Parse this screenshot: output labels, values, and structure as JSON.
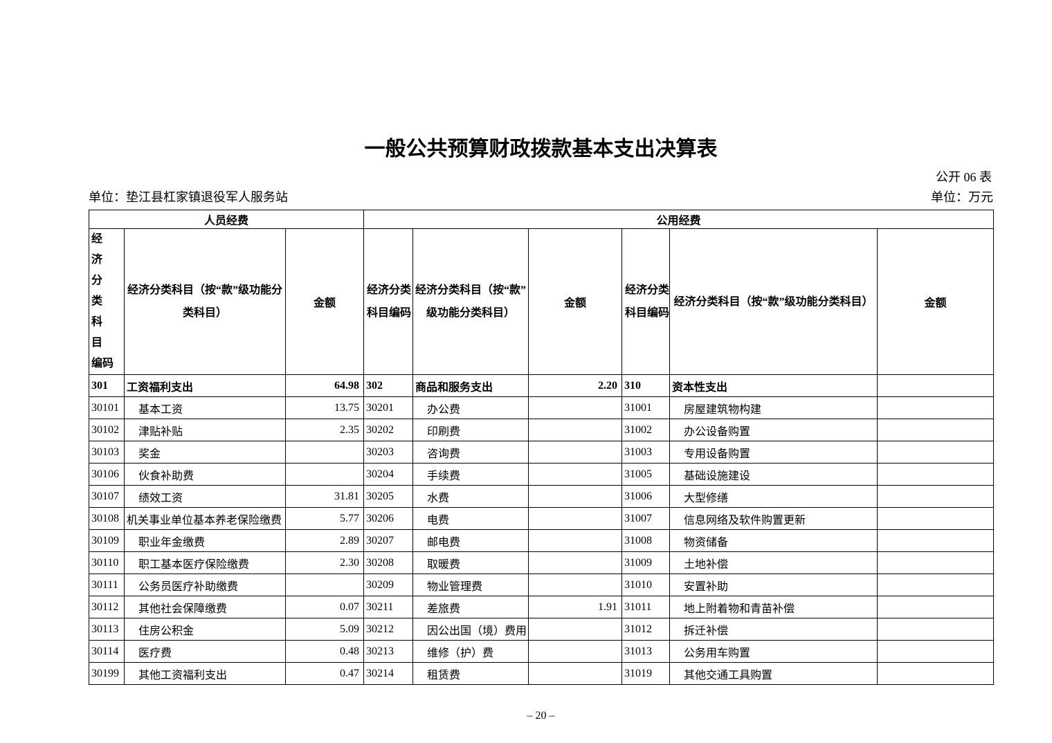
{
  "page": {
    "title": "一般公共预算财政拨款基本支出决算表",
    "table_code": "公开 06 表",
    "unit_left": "单位：垫江县杠家镇退役军人服务站",
    "unit_right": "单位：万元",
    "page_number": "– 20 –"
  },
  "table": {
    "group_headers": {
      "personnel": "人员经费",
      "public": "公用经费"
    },
    "columns": {
      "code_header_vertical": "经　济\n分　类\n科　目\n编码",
      "code_header": "经济分类\n科目编码",
      "subject_header_wrap2": "经济分类科目（按“款”级功能分\n类科目）",
      "subject_header_wrap": "经济分类科目（按“款”\n级功能分类科目）",
      "subject_header": "经济分类科目（按“款”级功能分类科目）",
      "amount_header": "金额"
    },
    "rows": [
      [
        {
          "code": "301",
          "name": "工资福利支出",
          "amount": "64.98",
          "bold": true
        },
        {
          "code": "302",
          "name": "商品和服务支出",
          "amount": "2.20",
          "bold": true
        },
        {
          "code": "310",
          "name": "资本性支出",
          "amount": "",
          "bold": true
        }
      ],
      [
        {
          "code": "30101",
          "name": "基本工资",
          "amount": "13.75"
        },
        {
          "code": "30201",
          "name": "办公费",
          "amount": ""
        },
        {
          "code": "31001",
          "name": "房屋建筑物构建",
          "amount": ""
        }
      ],
      [
        {
          "code": "30102",
          "name": "津贴补贴",
          "amount": "2.35"
        },
        {
          "code": "30202",
          "name": "印刷费",
          "amount": ""
        },
        {
          "code": "31002",
          "name": "办公设备购置",
          "amount": ""
        }
      ],
      [
        {
          "code": "30103",
          "name": "奖金",
          "amount": ""
        },
        {
          "code": "30203",
          "name": "咨询费",
          "amount": ""
        },
        {
          "code": "31003",
          "name": "专用设备购置",
          "amount": ""
        }
      ],
      [
        {
          "code": "30106",
          "name": "伙食补助费",
          "amount": ""
        },
        {
          "code": "30204",
          "name": "手续费",
          "amount": ""
        },
        {
          "code": "31005",
          "name": "基础设施建设",
          "amount": ""
        }
      ],
      [
        {
          "code": "30107",
          "name": "绩效工资",
          "amount": "31.81"
        },
        {
          "code": "30205",
          "name": "水费",
          "amount": ""
        },
        {
          "code": "31006",
          "name": "大型修缮",
          "amount": ""
        }
      ],
      [
        {
          "code": "30108",
          "name": "机关事业单位基本养老保险缴费",
          "amount": "5.77",
          "flush": true
        },
        {
          "code": "30206",
          "name": "电费",
          "amount": ""
        },
        {
          "code": "31007",
          "name": "信息网络及软件购置更新",
          "amount": ""
        }
      ],
      [
        {
          "code": "30109",
          "name": "职业年金缴费",
          "amount": "2.89"
        },
        {
          "code": "30207",
          "name": "邮电费",
          "amount": ""
        },
        {
          "code": "31008",
          "name": "物资储备",
          "amount": ""
        }
      ],
      [
        {
          "code": "30110",
          "name": "职工基本医疗保险缴费",
          "amount": "2.30"
        },
        {
          "code": "30208",
          "name": "取暖费",
          "amount": ""
        },
        {
          "code": "31009",
          "name": "土地补偿",
          "amount": ""
        }
      ],
      [
        {
          "code": "30111",
          "name": "公务员医疗补助缴费",
          "amount": ""
        },
        {
          "code": "30209",
          "name": "物业管理费",
          "amount": ""
        },
        {
          "code": "31010",
          "name": "安置补助",
          "amount": ""
        }
      ],
      [
        {
          "code": "30112",
          "name": "其他社会保障缴费",
          "amount": "0.07"
        },
        {
          "code": "30211",
          "name": "差旅费",
          "amount": "1.91"
        },
        {
          "code": "31011",
          "name": "地上附着物和青苗补偿",
          "amount": ""
        }
      ],
      [
        {
          "code": "30113",
          "name": "住房公积金",
          "amount": "5.09"
        },
        {
          "code": "30212",
          "name": "因公出国（境）费用",
          "amount": ""
        },
        {
          "code": "31012",
          "name": "拆迁补偿",
          "amount": ""
        }
      ],
      [
        {
          "code": "30114",
          "name": "医疗费",
          "amount": "0.48"
        },
        {
          "code": "30213",
          "name": "维修（护）费",
          "amount": ""
        },
        {
          "code": "31013",
          "name": "公务用车购置",
          "amount": ""
        }
      ],
      [
        {
          "code": "30199",
          "name": "其他工资福利支出",
          "amount": "0.47"
        },
        {
          "code": "30214",
          "name": "租赁费",
          "amount": ""
        },
        {
          "code": "31019",
          "name": "其他交通工具购置",
          "amount": ""
        }
      ]
    ]
  }
}
